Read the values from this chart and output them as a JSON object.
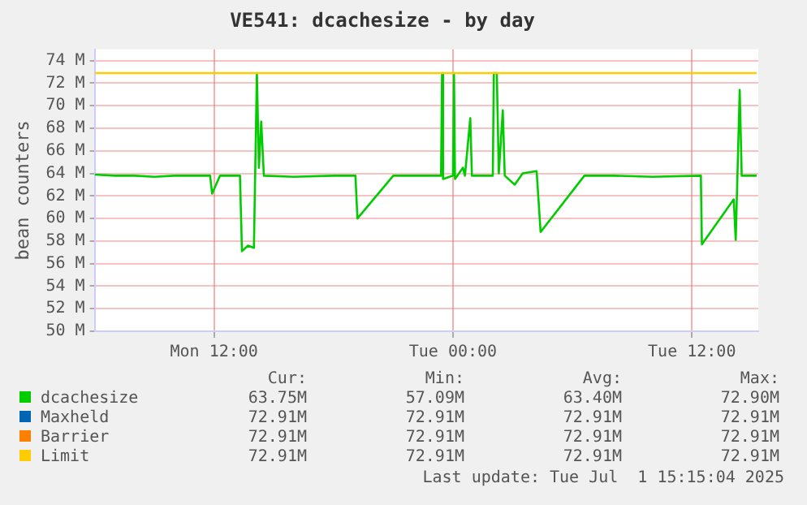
{
  "chart_data": {
    "type": "line",
    "title": "VE541: dcachesize - by day",
    "ylabel": "bean counters",
    "xlim": [
      "2025-06-30T06:00",
      "2025-07-01T15:20"
    ],
    "xticks": [
      {
        "value": "2025-06-30T12:00",
        "label": "Mon 12:00"
      },
      {
        "value": "2025-07-01T00:00",
        "label": "Tue 00:00"
      },
      {
        "value": "2025-07-01T12:00",
        "label": "Tue 12:00"
      }
    ],
    "ylim": [
      50,
      75
    ],
    "yticks": [
      {
        "value": 50,
        "label": "50 M"
      },
      {
        "value": 52,
        "label": "52 M"
      },
      {
        "value": 54,
        "label": "54 M"
      },
      {
        "value": 56,
        "label": "56 M"
      },
      {
        "value": 58,
        "label": "58 M"
      },
      {
        "value": 60,
        "label": "60 M"
      },
      {
        "value": 62,
        "label": "62 M"
      },
      {
        "value": 64,
        "label": "64 M"
      },
      {
        "value": 66,
        "label": "66 M"
      },
      {
        "value": 68,
        "label": "68 M"
      },
      {
        "value": 70,
        "label": "70 M"
      },
      {
        "value": 72,
        "label": "72 M"
      },
      {
        "value": 74,
        "label": "74 M"
      }
    ],
    "grid": true,
    "legend": "bottom",
    "marker": "none",
    "series": [
      {
        "name": "Maxheld",
        "color": "#0066b3"
      },
      {
        "name": "Barrier",
        "color": "#ff8000"
      },
      {
        "name": "Limit",
        "color": "#ffcc00",
        "x": [
          "2025-06-30T06:00",
          "2025-07-01T15:15"
        ],
        "values": [
          72.9,
          72.9
        ]
      },
      {
        "name": "dcachesize",
        "color": "#00cc00",
        "x": [
          "2025-06-30T06:00",
          "2025-06-30T07:00",
          "2025-06-30T08:00",
          "2025-06-30T09:00",
          "2025-06-30T10:00",
          "2025-06-30T11:00",
          "2025-06-30T11:48",
          "2025-06-30T11:54",
          "2025-06-30T12:18",
          "2025-06-30T13:18",
          "2025-06-30T13:24",
          "2025-06-30T13:42",
          "2025-06-30T14:00",
          "2025-06-30T14:09",
          "2025-06-30T14:15",
          "2025-06-30T14:22",
          "2025-06-30T14:30",
          "2025-06-30T16:00",
          "2025-06-30T18:00",
          "2025-06-30T19:06",
          "2025-06-30T19:12",
          "2025-06-30T21:00",
          "2025-06-30T22:00",
          "2025-06-30T23:24",
          "2025-06-30T23:27",
          "2025-06-30T23:30",
          "2025-07-01T00:00",
          "2025-07-01T00:03",
          "2025-07-01T00:06",
          "2025-07-01T00:30",
          "2025-07-01T00:36",
          "2025-07-01T00:52",
          "2025-07-01T00:57",
          "2025-07-01T02:00",
          "2025-07-01T02:03",
          "2025-07-01T02:12",
          "2025-07-01T02:18",
          "2025-07-01T02:30",
          "2025-07-01T02:36",
          "2025-07-01T03:06",
          "2025-07-01T03:30",
          "2025-07-01T04:12",
          "2025-07-01T04:24",
          "2025-07-01T06:36",
          "2025-07-01T08:00",
          "2025-07-01T10:00",
          "2025-07-01T12:27",
          "2025-07-01T12:30",
          "2025-07-01T14:06",
          "2025-07-01T14:12",
          "2025-07-01T14:24",
          "2025-07-01T14:30",
          "2025-07-01T15:15"
        ],
        "values": [
          63.9,
          63.8,
          63.8,
          63.7,
          63.8,
          63.8,
          63.8,
          62.2,
          63.8,
          63.8,
          57.1,
          57.6,
          57.4,
          72.9,
          64.5,
          68.6,
          63.8,
          63.7,
          63.8,
          63.8,
          60.0,
          63.8,
          63.8,
          63.8,
          72.9,
          63.5,
          63.8,
          72.9,
          63.5,
          64.5,
          63.8,
          68.9,
          63.8,
          63.8,
          72.9,
          72.9,
          64.0,
          69.6,
          63.8,
          63.0,
          64.0,
          64.2,
          58.8,
          63.8,
          63.8,
          63.7,
          63.8,
          57.7,
          61.7,
          58.1,
          71.4,
          63.8,
          63.8
        ]
      }
    ],
    "annotations": [
      "Cur:",
      "Min:",
      "Avg:",
      "Max:",
      "63.75M",
      "57.09M",
      "63.40M",
      "72.90M",
      "72.91M",
      "72.91M",
      "72.91M",
      "72.91M",
      "72.91M",
      "72.91M",
      "72.91M",
      "72.91M",
      "72.91M",
      "72.91M",
      "72.91M",
      "72.91M",
      "Last update: Tue Jul  1 15:15:04 2025"
    ]
  }
}
